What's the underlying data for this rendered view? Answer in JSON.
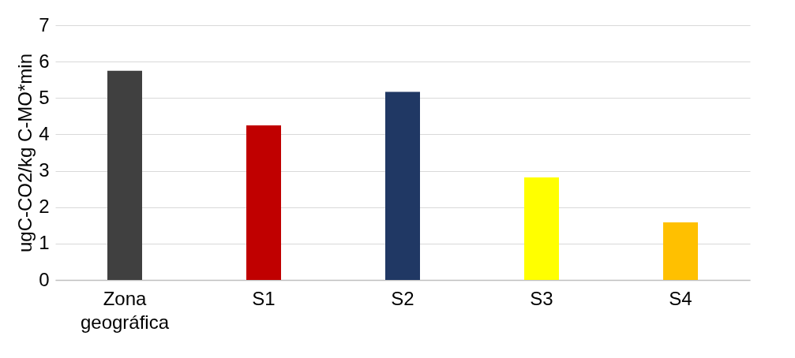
{
  "chart_data": {
    "type": "bar",
    "ylabel": "ugC-CO2/kg C-MO*min",
    "categories": [
      "Zona geográfica",
      "S1",
      "S2",
      "S3",
      "S4"
    ],
    "values": [
      5.75,
      4.25,
      5.17,
      2.82,
      1.58
    ],
    "colors": [
      "#404040",
      "#c00000",
      "#203864",
      "#ffff00",
      "#ffc000"
    ],
    "ylim": [
      0,
      7
    ],
    "yticks": [
      0,
      1,
      2,
      3,
      4,
      5,
      6,
      7
    ],
    "grid": "y"
  }
}
